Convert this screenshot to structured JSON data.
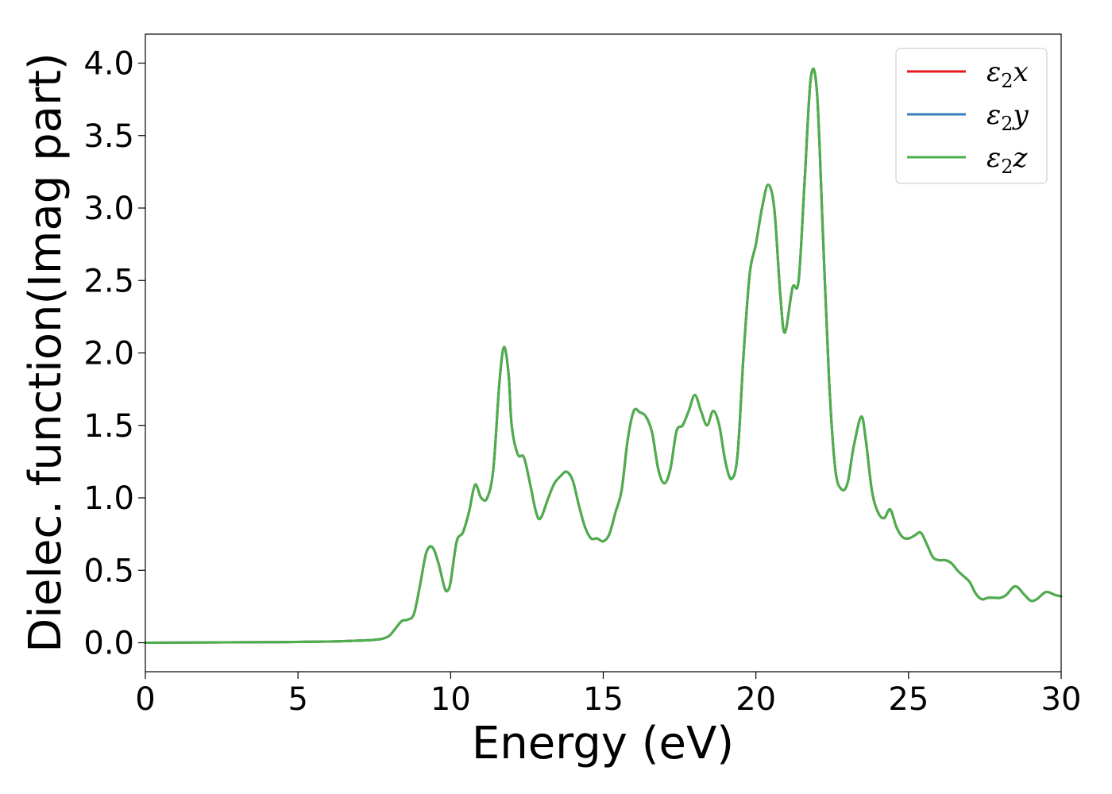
{
  "chart_data": {
    "type": "line",
    "xlabel": "Energy (eV)",
    "ylabel": "Dielec. function(Imag part)",
    "xlim": [
      0,
      30
    ],
    "ylim": [
      -0.2,
      4.2
    ],
    "xticks": [
      0,
      5,
      10,
      15,
      20,
      25,
      30
    ],
    "xtick_labels": [
      "0",
      "5",
      "10",
      "15",
      "20",
      "25",
      "30"
    ],
    "yticks": [
      0.0,
      0.5,
      1.0,
      1.5,
      2.0,
      2.5,
      3.0,
      3.5,
      4.0
    ],
    "ytick_labels": [
      "0.0",
      "0.5",
      "1.0",
      "1.5",
      "2.0",
      "2.5",
      "3.0",
      "3.5",
      "4.0"
    ],
    "grid": false,
    "legend_position": "top-right",
    "x": [
      0,
      2,
      4,
      6,
      7,
      7.5,
      7.8,
      8.0,
      8.2,
      8.4,
      8.6,
      8.8,
      9.0,
      9.2,
      9.4,
      9.6,
      9.8,
      9.9,
      10.0,
      10.2,
      10.4,
      10.6,
      10.8,
      11.0,
      11.2,
      11.4,
      11.6,
      11.75,
      11.9,
      12.0,
      12.2,
      12.4,
      12.6,
      12.8,
      12.95,
      13.2,
      13.4,
      13.6,
      13.8,
      14.0,
      14.2,
      14.4,
      14.6,
      14.8,
      15.0,
      15.2,
      15.4,
      15.6,
      15.8,
      16.0,
      16.2,
      16.4,
      16.6,
      16.8,
      17.0,
      17.2,
      17.4,
      17.6,
      17.8,
      18.0,
      18.2,
      18.4,
      18.6,
      18.8,
      19.0,
      19.2,
      19.4,
      19.6,
      19.8,
      20.0,
      20.2,
      20.4,
      20.6,
      20.8,
      20.95,
      21.2,
      21.4,
      21.6,
      21.8,
      22.0,
      22.2,
      22.4,
      22.6,
      22.8,
      23.0,
      23.2,
      23.45,
      23.6,
      23.8,
      24.0,
      24.2,
      24.4,
      24.6,
      24.8,
      25.0,
      25.2,
      25.4,
      25.6,
      25.8,
      26.0,
      26.2,
      26.4,
      26.6,
      26.8,
      27.0,
      27.2,
      27.4,
      27.6,
      27.8,
      28.0,
      28.2,
      28.5,
      28.8,
      29.0,
      29.2,
      29.5,
      29.8,
      30.0
    ],
    "series": [
      {
        "name": "x",
        "color": "#e41a1c",
        "values": [
          0.0,
          0.002,
          0.004,
          0.008,
          0.015,
          0.02,
          0.03,
          0.05,
          0.1,
          0.15,
          0.16,
          0.2,
          0.4,
          0.62,
          0.66,
          0.55,
          0.38,
          0.36,
          0.42,
          0.7,
          0.76,
          0.9,
          1.09,
          1.0,
          1.0,
          1.2,
          1.8,
          2.04,
          1.85,
          1.5,
          1.3,
          1.28,
          1.1,
          0.9,
          0.86,
          1.0,
          1.1,
          1.15,
          1.18,
          1.12,
          0.95,
          0.8,
          0.72,
          0.72,
          0.7,
          0.75,
          0.9,
          1.05,
          1.4,
          1.6,
          1.59,
          1.56,
          1.45,
          1.2,
          1.1,
          1.2,
          1.46,
          1.5,
          1.6,
          1.71,
          1.6,
          1.5,
          1.6,
          1.5,
          1.25,
          1.13,
          1.3,
          2.0,
          2.55,
          2.75,
          3.0,
          3.16,
          3.0,
          2.4,
          2.14,
          2.45,
          2.5,
          3.2,
          3.9,
          3.8,
          2.8,
          1.8,
          1.2,
          1.06,
          1.1,
          1.35,
          1.56,
          1.4,
          1.05,
          0.9,
          0.86,
          0.92,
          0.8,
          0.73,
          0.72,
          0.74,
          0.76,
          0.68,
          0.59,
          0.57,
          0.57,
          0.55,
          0.5,
          0.46,
          0.42,
          0.34,
          0.3,
          0.31,
          0.31,
          0.31,
          0.33,
          0.39,
          0.33,
          0.29,
          0.3,
          0.35,
          0.33,
          0.32
        ]
      },
      {
        "name": "y",
        "color": "#377eb8",
        "values": [
          0.0,
          0.002,
          0.004,
          0.008,
          0.015,
          0.02,
          0.03,
          0.05,
          0.1,
          0.15,
          0.16,
          0.2,
          0.4,
          0.62,
          0.66,
          0.55,
          0.38,
          0.36,
          0.42,
          0.7,
          0.76,
          0.9,
          1.09,
          1.0,
          1.0,
          1.2,
          1.8,
          2.04,
          1.85,
          1.5,
          1.3,
          1.28,
          1.1,
          0.9,
          0.86,
          1.0,
          1.1,
          1.15,
          1.18,
          1.12,
          0.95,
          0.8,
          0.72,
          0.72,
          0.7,
          0.75,
          0.9,
          1.05,
          1.4,
          1.6,
          1.59,
          1.56,
          1.45,
          1.2,
          1.1,
          1.2,
          1.46,
          1.5,
          1.6,
          1.71,
          1.6,
          1.5,
          1.6,
          1.5,
          1.25,
          1.13,
          1.3,
          2.0,
          2.55,
          2.75,
          3.0,
          3.16,
          3.0,
          2.4,
          2.14,
          2.45,
          2.5,
          3.2,
          3.9,
          3.8,
          2.8,
          1.8,
          1.2,
          1.06,
          1.1,
          1.35,
          1.56,
          1.4,
          1.05,
          0.9,
          0.86,
          0.92,
          0.8,
          0.73,
          0.72,
          0.74,
          0.76,
          0.68,
          0.59,
          0.57,
          0.57,
          0.55,
          0.5,
          0.46,
          0.42,
          0.34,
          0.3,
          0.31,
          0.31,
          0.31,
          0.33,
          0.39,
          0.33,
          0.29,
          0.3,
          0.35,
          0.33,
          0.32
        ]
      },
      {
        "name": "z",
        "color": "#4daf4a",
        "values": [
          0.0,
          0.002,
          0.004,
          0.008,
          0.015,
          0.02,
          0.03,
          0.05,
          0.1,
          0.15,
          0.16,
          0.2,
          0.4,
          0.62,
          0.66,
          0.55,
          0.38,
          0.36,
          0.42,
          0.7,
          0.76,
          0.9,
          1.09,
          1.0,
          1.0,
          1.2,
          1.8,
          2.04,
          1.85,
          1.5,
          1.3,
          1.28,
          1.1,
          0.9,
          0.86,
          1.0,
          1.1,
          1.15,
          1.18,
          1.12,
          0.95,
          0.8,
          0.72,
          0.72,
          0.7,
          0.75,
          0.9,
          1.05,
          1.4,
          1.6,
          1.59,
          1.56,
          1.45,
          1.2,
          1.1,
          1.2,
          1.46,
          1.5,
          1.6,
          1.71,
          1.6,
          1.5,
          1.6,
          1.5,
          1.25,
          1.13,
          1.3,
          2.0,
          2.55,
          2.75,
          3.0,
          3.16,
          3.0,
          2.4,
          2.14,
          2.45,
          2.5,
          3.2,
          3.9,
          3.8,
          2.8,
          1.8,
          1.2,
          1.06,
          1.1,
          1.35,
          1.56,
          1.4,
          1.05,
          0.9,
          0.86,
          0.92,
          0.8,
          0.73,
          0.72,
          0.74,
          0.76,
          0.68,
          0.59,
          0.57,
          0.57,
          0.55,
          0.5,
          0.46,
          0.42,
          0.34,
          0.3,
          0.31,
          0.31,
          0.31,
          0.33,
          0.39,
          0.33,
          0.29,
          0.3,
          0.35,
          0.33,
          0.32
        ]
      }
    ],
    "legend_symbol": "ε",
    "legend_subscript": "2"
  }
}
